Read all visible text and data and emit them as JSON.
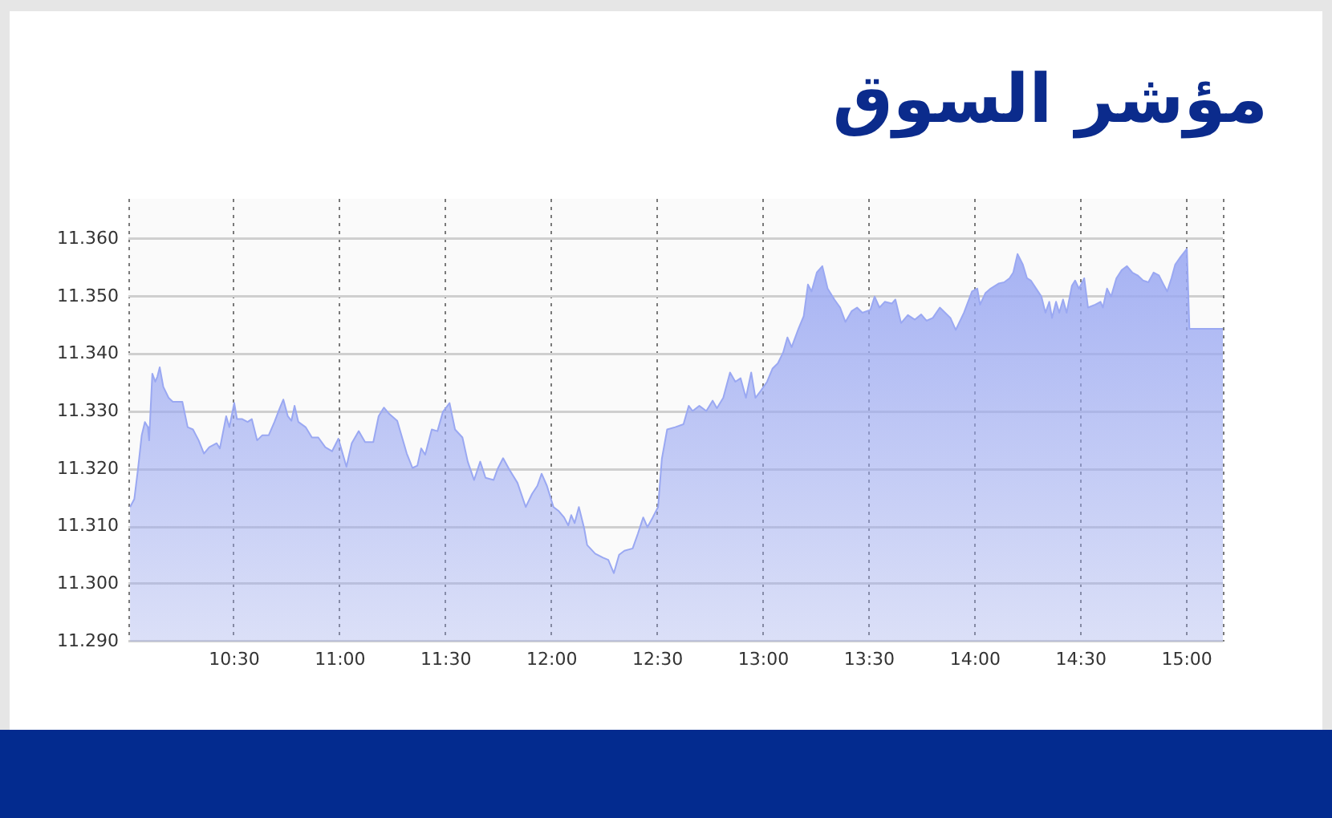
{
  "chart_data": {
    "type": "area",
    "title": "مؤشر السوق",
    "x": [
      10.008,
      10.028,
      10.045,
      10.063,
      10.078,
      10.092,
      10.098,
      10.113,
      10.127,
      10.137,
      10.148,
      10.165,
      10.19,
      10.21,
      10.255,
      10.28,
      10.305,
      10.332,
      10.357,
      10.382,
      10.417,
      10.432,
      10.462,
      10.477,
      10.5,
      10.513,
      10.538,
      10.563,
      10.583,
      10.608,
      10.633,
      10.663,
      10.69,
      10.715,
      10.732,
      10.753,
      10.77,
      10.785,
      10.803,
      10.837,
      10.867,
      10.897,
      10.93,
      10.962,
      10.992,
      11.03,
      11.055,
      11.088,
      11.118,
      11.157,
      11.182,
      11.207,
      11.232,
      11.27,
      11.315,
      11.342,
      11.365,
      11.383,
      11.402,
      11.433,
      11.46,
      11.485,
      11.517,
      11.543,
      11.578,
      11.603,
      11.633,
      11.662,
      11.687,
      11.725,
      11.745,
      11.77,
      11.8,
      11.838,
      11.877,
      11.907,
      11.932,
      11.952,
      11.977,
      12.008,
      12.033,
      12.058,
      12.078,
      12.092,
      12.108,
      12.128,
      12.153,
      12.167,
      12.205,
      12.242,
      12.267,
      12.293,
      12.318,
      12.343,
      12.382,
      12.407,
      12.432,
      12.452,
      12.477,
      12.502,
      12.52,
      12.545,
      12.583,
      12.622,
      12.647,
      12.665,
      12.697,
      12.73,
      12.76,
      12.78,
      12.81,
      12.842,
      12.867,
      12.892,
      12.917,
      12.942,
      12.962,
      12.987,
      13.017,
      13.043,
      13.068,
      13.093,
      13.113,
      13.133,
      13.165,
      13.19,
      13.21,
      13.227,
      13.252,
      13.278,
      13.303,
      13.335,
      13.362,
      13.387,
      13.417,
      13.442,
      13.467,
      13.505,
      13.525,
      13.548,
      13.573,
      13.607,
      13.623,
      13.65,
      13.682,
      13.715,
      13.745,
      13.77,
      13.8,
      13.833,
      13.858,
      13.883,
      13.908,
      13.947,
      13.985,
      14.01,
      14.023,
      14.048,
      14.073,
      14.112,
      14.137,
      14.162,
      14.18,
      14.2,
      14.225,
      14.245,
      14.263,
      14.288,
      14.313,
      14.332,
      14.35,
      14.363,
      14.382,
      14.397,
      14.415,
      14.432,
      14.457,
      14.472,
      14.49,
      14.515,
      14.533,
      14.567,
      14.592,
      14.603,
      14.623,
      14.642,
      14.667,
      14.692,
      14.717,
      14.742,
      14.767,
      14.793,
      14.818,
      14.843,
      14.868,
      14.887,
      14.907,
      14.927,
      14.945,
      14.97,
      15.0,
      15.012,
      15.17
    ],
    "values": [
      11.3134,
      11.3148,
      11.3199,
      11.3259,
      11.3282,
      11.3273,
      11.325,
      11.3366,
      11.3352,
      11.3361,
      11.3377,
      11.3343,
      11.3324,
      11.3317,
      11.3317,
      11.3273,
      11.3269,
      11.325,
      11.3227,
      11.3238,
      11.3245,
      11.3236,
      11.3292,
      11.3273,
      11.3315,
      11.3287,
      11.3287,
      11.3282,
      11.3287,
      11.325,
      11.3259,
      11.3259,
      11.3282,
      11.3306,
      11.3321,
      11.3292,
      11.3284,
      11.331,
      11.3282,
      11.3273,
      11.3255,
      11.3255,
      11.3238,
      11.3231,
      11.3253,
      11.3204,
      11.3245,
      11.3266,
      11.3247,
      11.3247,
      11.3292,
      11.3307,
      11.3296,
      11.3284,
      11.3227,
      11.3202,
      11.3206,
      11.3236,
      11.3225,
      11.3269,
      11.3266,
      11.3299,
      11.3315,
      11.3269,
      11.3255,
      11.3213,
      11.3181,
      11.3213,
      11.3185,
      11.3181,
      11.3201,
      11.3219,
      11.3199,
      11.3176,
      11.3134,
      11.3157,
      11.3171,
      11.3192,
      11.3171,
      11.3134,
      11.3127,
      11.3116,
      11.3102,
      11.312,
      11.3106,
      11.3134,
      11.3097,
      11.3068,
      11.3053,
      11.3046,
      11.3042,
      11.3019,
      11.3051,
      11.3058,
      11.3062,
      11.3088,
      11.3116,
      11.3099,
      11.3116,
      11.3134,
      11.3218,
      11.3269,
      11.3273,
      11.3278,
      11.331,
      11.3301,
      11.331,
      11.3301,
      11.3319,
      11.3306,
      11.3324,
      11.3368,
      11.3352,
      11.3358,
      11.3324,
      11.3368,
      11.3324,
      11.3336,
      11.3352,
      11.3375,
      11.3384,
      11.3403,
      11.3429,
      11.3412,
      11.3444,
      11.3466,
      11.3521,
      11.3509,
      11.3542,
      11.3553,
      11.3514,
      11.3495,
      11.3481,
      11.3456,
      11.3475,
      11.3481,
      11.3472,
      11.3477,
      11.35,
      11.3481,
      11.3491,
      11.3488,
      11.3495,
      11.3454,
      11.3468,
      11.346,
      11.3469,
      11.3458,
      11.3463,
      11.3481,
      11.3472,
      11.3463,
      11.3442,
      11.3472,
      11.3509,
      11.3514,
      11.3486,
      11.3506,
      11.3514,
      11.3523,
      11.3525,
      11.3532,
      11.3542,
      11.3574,
      11.3556,
      11.3532,
      11.3528,
      11.3514,
      11.35,
      11.3472,
      11.3491,
      11.3463,
      11.3491,
      11.3472,
      11.3495,
      11.3472,
      11.3519,
      11.3528,
      11.3514,
      11.3532,
      11.3481,
      11.3486,
      11.3491,
      11.3481,
      11.3514,
      11.35,
      11.3532,
      11.3546,
      11.3553,
      11.3542,
      11.3537,
      11.3528,
      11.3525,
      11.3542,
      11.3537,
      11.3523,
      11.3509,
      11.3532,
      11.3556,
      11.3569,
      11.3583,
      11.3444,
      11.3444
    ],
    "color": "#9aa8f2",
    "xlim": [
      10,
      15.17
    ],
    "xticks": [
      {
        "value": 10,
        "label": null
      },
      {
        "value": 10.5,
        "label": "10:30"
      },
      {
        "value": 11,
        "label": "11:00"
      },
      {
        "value": 11.5,
        "label": "11:30"
      },
      {
        "value": 12,
        "label": "12:00"
      },
      {
        "value": 12.5,
        "label": "12:30"
      },
      {
        "value": 13,
        "label": "13:00"
      },
      {
        "value": 13.5,
        "label": "13:30"
      },
      {
        "value": 14,
        "label": "14:00"
      },
      {
        "value": 14.5,
        "label": "14:30"
      },
      {
        "value": 15,
        "label": "15:00"
      },
      {
        "value": 15.17,
        "label": null
      }
    ],
    "ylim": [
      11.29,
      11.367
    ],
    "yticks": [
      {
        "value": 11.29,
        "label": "11.290"
      },
      {
        "value": 11.3,
        "label": "11.300"
      },
      {
        "value": 11.31,
        "label": "11.310"
      },
      {
        "value": 11.32,
        "label": "11.320"
      },
      {
        "value": 11.33,
        "label": "11.330"
      },
      {
        "value": 11.34,
        "label": "11.340"
      },
      {
        "value": 11.35,
        "label": "11.350"
      },
      {
        "value": 11.36,
        "label": "11.360"
      }
    ],
    "grid": true
  }
}
